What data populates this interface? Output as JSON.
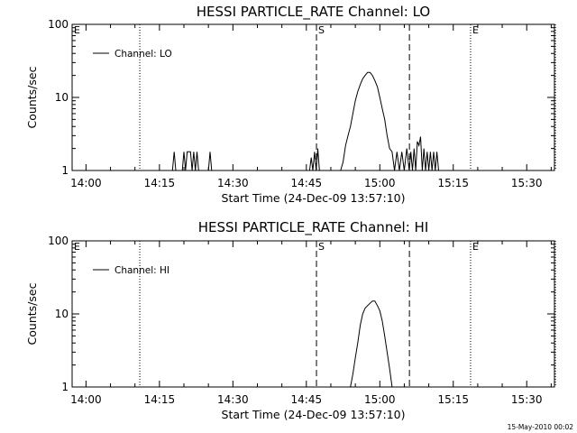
{
  "stamp": "15-May-2010 00:02",
  "chart_data": [
    {
      "type": "line",
      "title": "HESSI PARTICLE_RATE Channel: LO",
      "xlabel": "Start Time (24-Dec-09 13:57:10)",
      "ylabel": "Counts/sec",
      "yscale": "log",
      "ylim": [
        1,
        100
      ],
      "xlim": [
        "13:57:10",
        "15:35:40"
      ],
      "x_ticks": [
        "14:00",
        "14:15",
        "14:30",
        "14:45",
        "15:00",
        "15:15",
        "15:30"
      ],
      "y_ticks": [
        "1",
        "10",
        "100"
      ],
      "legend": {
        "placement": "top-left",
        "entries": [
          "Channel: LO"
        ]
      },
      "markers": [
        {
          "label": "E",
          "time": "13:57:10",
          "style": "dotted"
        },
        {
          "label": "",
          "time": "14:10:59",
          "style": "dotted"
        },
        {
          "label": "S",
          "time": "14:47:04",
          "style": "dashed"
        },
        {
          "label": "",
          "time": "15:06:03",
          "style": "dashed"
        },
        {
          "label": "E",
          "time": "15:18:32",
          "style": "dotted"
        },
        {
          "label": "",
          "time": "15:35:52",
          "style": "dotted"
        }
      ],
      "series": [
        {
          "name": "Channel: LO",
          "x": [
            "14:17:40",
            "14:18:00",
            "14:18:20",
            "14:18:40",
            "14:19:40",
            "14:20:00",
            "14:20:20",
            "14:20:40",
            "14:21:00",
            "14:21:20",
            "14:21:40",
            "14:22:00",
            "14:22:20",
            "14:22:40",
            "14:23:00",
            "14:25:00",
            "14:25:20",
            "14:25:40",
            "14:45:40",
            "14:46:00",
            "14:46:20",
            "14:46:40",
            "14:47:00",
            "14:47:20",
            "14:47:40",
            "14:52:00",
            "14:52:30",
            "14:53:00",
            "14:53:30",
            "14:54:00",
            "14:54:30",
            "14:55:00",
            "14:55:30",
            "14:56:00",
            "14:56:30",
            "14:57:00",
            "14:57:30",
            "14:58:00",
            "14:58:30",
            "14:59:00",
            "14:59:30",
            "15:00:00",
            "15:00:30",
            "15:01:00",
            "15:01:30",
            "15:02:00",
            "15:02:30",
            "15:03:00",
            "15:03:30",
            "15:04:00",
            "15:04:30",
            "15:05:00",
            "15:05:30",
            "15:06:00",
            "15:06:20",
            "15:06:40",
            "15:07:00",
            "15:07:20",
            "15:07:40",
            "15:08:00",
            "15:08:20",
            "15:08:40",
            "15:09:00",
            "15:09:20",
            "15:09:40",
            "15:10:00",
            "15:10:20",
            "15:10:40",
            "15:11:00",
            "15:11:20",
            "15:11:40",
            "15:12:00",
            "15:12:20",
            "15:12:40",
            "15:13:00",
            "15:13:20",
            "15:13:40",
            "15:14:00"
          ],
          "y": [
            1,
            1.8,
            1,
            1,
            1,
            1.8,
            1,
            1.8,
            1.8,
            1.8,
            1,
            1.8,
            1,
            1.8,
            1,
            1,
            1.8,
            1,
            1,
            1.5,
            1,
            1.8,
            1,
            2,
            1,
            1,
            1.3,
            2.2,
            3,
            4,
            6,
            9,
            12,
            15,
            18,
            20,
            22,
            22,
            20,
            17,
            14,
            10,
            7,
            5,
            3,
            2,
            1.8,
            1,
            1.8,
            1,
            1.8,
            1,
            2,
            1,
            1.8,
            1,
            2,
            1,
            2.5,
            2.2,
            2.9,
            1,
            2,
            1,
            1.8,
            1,
            1.8,
            1,
            1.8,
            1,
            1.8,
            1,
            1,
            1,
            1,
            1,
            1,
            1
          ]
        }
      ]
    },
    {
      "type": "line",
      "title": "HESSI PARTICLE_RATE Channel: HI",
      "xlabel": "Start Time (24-Dec-09 13:57:10)",
      "ylabel": "Counts/sec",
      "yscale": "log",
      "ylim": [
        1,
        100
      ],
      "xlim": [
        "13:57:10",
        "15:35:40"
      ],
      "x_ticks": [
        "14:00",
        "14:15",
        "14:30",
        "14:45",
        "15:00",
        "15:15",
        "15:30"
      ],
      "y_ticks": [
        "1",
        "10",
        "100"
      ],
      "legend": {
        "placement": "top-left",
        "entries": [
          "Channel: HI"
        ]
      },
      "markers": [
        {
          "label": "E",
          "time": "13:57:10",
          "style": "dotted"
        },
        {
          "label": "",
          "time": "14:10:59",
          "style": "dotted"
        },
        {
          "label": "S",
          "time": "14:47:04",
          "style": "dashed"
        },
        {
          "label": "",
          "time": "15:06:03",
          "style": "dashed"
        },
        {
          "label": "E",
          "time": "15:18:32",
          "style": "dotted"
        },
        {
          "label": "",
          "time": "15:35:52",
          "style": "dotted"
        }
      ],
      "series": [
        {
          "name": "Channel: HI",
          "x": [
            "14:54:00",
            "14:54:30",
            "14:55:00",
            "14:55:30",
            "14:56:00",
            "14:56:30",
            "14:57:00",
            "14:57:30",
            "14:58:00",
            "14:58:30",
            "14:59:00",
            "14:59:30",
            "15:00:00",
            "15:00:30",
            "15:01:00",
            "15:01:30",
            "15:02:00",
            "15:02:30"
          ],
          "y": [
            1,
            1.5,
            2.5,
            4,
            7,
            10,
            12,
            13,
            14,
            15,
            15,
            13,
            11,
            8,
            5,
            3,
            1.8,
            1
          ]
        }
      ]
    }
  ]
}
